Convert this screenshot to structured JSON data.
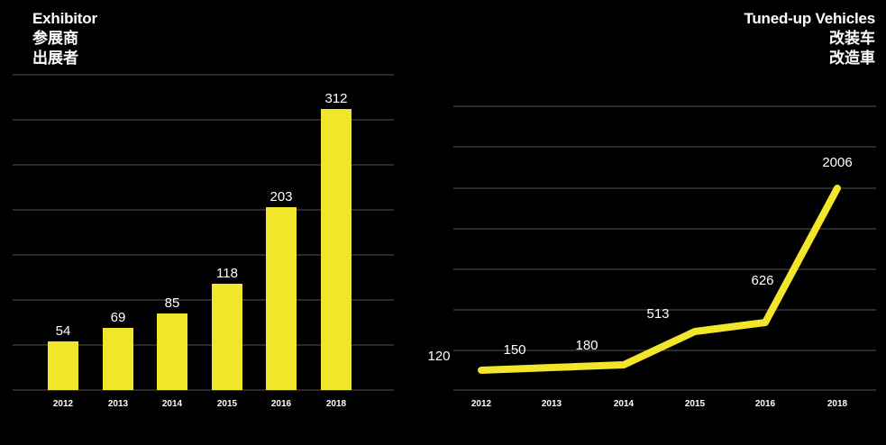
{
  "colors": {
    "background": "#000000",
    "accent": "#f2e52a",
    "grid": "#555555",
    "text": "#ffffff"
  },
  "left_title": {
    "en": "Exhibitor",
    "cn1": "参展商",
    "cn2": "出展者"
  },
  "right_title": {
    "en": "Tuned-up Vehicles",
    "cn1": "改装车",
    "cn2": "改造車"
  },
  "chart_data": [
    {
      "type": "bar",
      "title": "Exhibitor 参展商 出展者",
      "categories": [
        "2012",
        "2013",
        "2014",
        "2015",
        "2016",
        "2018"
      ],
      "values": [
        54,
        69,
        85,
        118,
        203,
        312
      ],
      "ylim": [
        0,
        350
      ],
      "grid": true
    },
    {
      "type": "line",
      "title": "Tuned-up Vehicles 改装车 改造車",
      "categories": [
        "2012",
        "2013",
        "2014",
        "2015",
        "2016",
        "2018"
      ],
      "values": [
        120,
        150,
        180,
        513,
        626,
        2006
      ],
      "grid": true
    }
  ]
}
